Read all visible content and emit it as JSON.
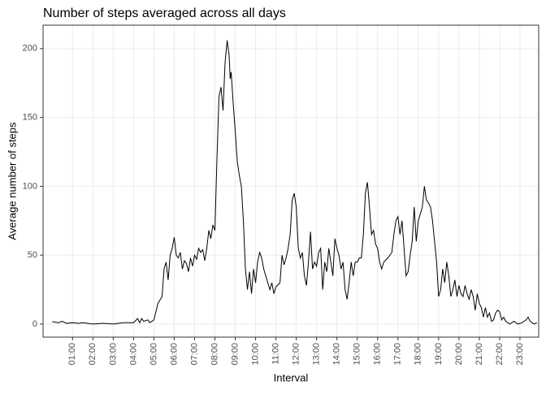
{
  "chart_data": {
    "type": "line",
    "title": "Number of steps averaged across all days",
    "xlabel": "Interval",
    "ylabel": "Average number of steps",
    "color": "#000000",
    "grid": true,
    "xlim": [
      -0.45,
      23.92
    ],
    "ylim": [
      -9.5,
      217
    ],
    "yticks": [
      0,
      50,
      100,
      150,
      200
    ],
    "xticks": [
      {
        "value": 1,
        "label": "01:00"
      },
      {
        "value": 2,
        "label": "02:00"
      },
      {
        "value": 3,
        "label": "03:00"
      },
      {
        "value": 4,
        "label": "04:00"
      },
      {
        "value": 5,
        "label": "05:00"
      },
      {
        "value": 6,
        "label": "06:00"
      },
      {
        "value": 7,
        "label": "07:00"
      },
      {
        "value": 8,
        "label": "08:00"
      },
      {
        "value": 9,
        "label": "09:00"
      },
      {
        "value": 10,
        "label": "10:00"
      },
      {
        "value": 11,
        "label": "11:00"
      },
      {
        "value": 12,
        "label": "12:00"
      },
      {
        "value": 13,
        "label": "13:00"
      },
      {
        "value": 14,
        "label": "14:00"
      },
      {
        "value": 15,
        "label": "15:00"
      },
      {
        "value": 16,
        "label": "16:00"
      },
      {
        "value": 17,
        "label": "17:00"
      },
      {
        "value": 18,
        "label": "18:00"
      },
      {
        "value": 19,
        "label": "19:00"
      },
      {
        "value": 20,
        "label": "20:00"
      },
      {
        "value": 21,
        "label": "21:00"
      },
      {
        "value": 22,
        "label": "22:00"
      },
      {
        "value": 23,
        "label": "23:00"
      }
    ],
    "x": [
      0,
      0.3,
      0.5,
      0.7,
      1.0,
      1.3,
      1.5,
      2.0,
      2.5,
      3.0,
      3.5,
      4.0,
      4.2,
      4.3,
      4.4,
      4.5,
      4.7,
      4.8,
      5.0,
      5.2,
      5.4,
      5.5,
      5.6,
      5.7,
      5.8,
      5.9,
      6.0,
      6.1,
      6.2,
      6.3,
      6.4,
      6.5,
      6.6,
      6.7,
      6.8,
      6.9,
      7.0,
      7.1,
      7.2,
      7.3,
      7.4,
      7.5,
      7.6,
      7.7,
      7.8,
      7.9,
      8.0,
      8.1,
      8.2,
      8.3,
      8.4,
      8.5,
      8.6,
      8.7,
      8.75,
      8.8,
      8.9,
      9.0,
      9.1,
      9.2,
      9.3,
      9.4,
      9.5,
      9.6,
      9.7,
      9.8,
      9.9,
      10.0,
      10.1,
      10.2,
      10.3,
      10.4,
      10.5,
      10.6,
      10.7,
      10.8,
      10.9,
      11.0,
      11.2,
      11.3,
      11.4,
      11.5,
      11.6,
      11.7,
      11.8,
      11.9,
      12.0,
      12.1,
      12.2,
      12.3,
      12.4,
      12.5,
      12.6,
      12.7,
      12.8,
      12.9,
      13.0,
      13.1,
      13.2,
      13.3,
      13.4,
      13.5,
      13.6,
      13.7,
      13.8,
      13.9,
      14.0,
      14.1,
      14.2,
      14.3,
      14.4,
      14.5,
      14.6,
      14.7,
      14.8,
      14.9,
      15.0,
      15.1,
      15.2,
      15.3,
      15.4,
      15.5,
      15.6,
      15.7,
      15.8,
      15.9,
      16.0,
      16.1,
      16.2,
      16.3,
      16.5,
      16.7,
      16.8,
      16.9,
      17.0,
      17.1,
      17.2,
      17.3,
      17.4,
      17.5,
      17.6,
      17.7,
      17.8,
      17.9,
      18.0,
      18.1,
      18.2,
      18.3,
      18.4,
      18.5,
      18.6,
      18.7,
      18.8,
      18.9,
      19.0,
      19.1,
      19.2,
      19.3,
      19.4,
      19.5,
      19.6,
      19.7,
      19.8,
      19.9,
      20.0,
      20.1,
      20.2,
      20.3,
      20.4,
      20.5,
      20.6,
      20.7,
      20.8,
      20.9,
      21.0,
      21.1,
      21.2,
      21.3,
      21.4,
      21.5,
      21.6,
      21.7,
      21.8,
      21.9,
      22.0,
      22.1,
      22.2,
      22.3,
      22.5,
      22.7,
      22.9,
      23.1,
      23.3,
      23.4,
      23.5,
      23.7,
      23.83
    ],
    "values": [
      1.7,
      1,
      2,
      0.5,
      1,
      0.5,
      1,
      0,
      0.5,
      0,
      1,
      1,
      4,
      1,
      4,
      2,
      3,
      1,
      3,
      15,
      20,
      40,
      45,
      32,
      50,
      55,
      63,
      50,
      48,
      52,
      40,
      46,
      44,
      38,
      48,
      42,
      50,
      47,
      55,
      52,
      54,
      46,
      55,
      68,
      62,
      72,
      68,
      120,
      165,
      172,
      155,
      190,
      206,
      195,
      178,
      183,
      160,
      140,
      118,
      108,
      100,
      75,
      40,
      25,
      38,
      22,
      40,
      30,
      45,
      52,
      48,
      40,
      35,
      30,
      25,
      30,
      22,
      27,
      30,
      50,
      43,
      48,
      55,
      65,
      90,
      95,
      85,
      55,
      48,
      52,
      35,
      28,
      45,
      67,
      40,
      45,
      42,
      52,
      55,
      25,
      45,
      38,
      55,
      45,
      35,
      62,
      55,
      50,
      40,
      45,
      25,
      18,
      30,
      45,
      35,
      45,
      45,
      48,
      48,
      65,
      95,
      103,
      85,
      65,
      68,
      58,
      55,
      45,
      40,
      45,
      48,
      52,
      65,
      75,
      78,
      65,
      75,
      55,
      35,
      38,
      50,
      60,
      85,
      60,
      75,
      80,
      85,
      100,
      90,
      88,
      85,
      75,
      60,
      45,
      20,
      25,
      40,
      30,
      45,
      35,
      20,
      25,
      32,
      20,
      28,
      22,
      20,
      28,
      22,
      18,
      25,
      20,
      10,
      22,
      15,
      12,
      5,
      12,
      5,
      8,
      2,
      3,
      8,
      10,
      9,
      3,
      5,
      2,
      0,
      2,
      0,
      1,
      3,
      5,
      2,
      0,
      1
    ]
  }
}
